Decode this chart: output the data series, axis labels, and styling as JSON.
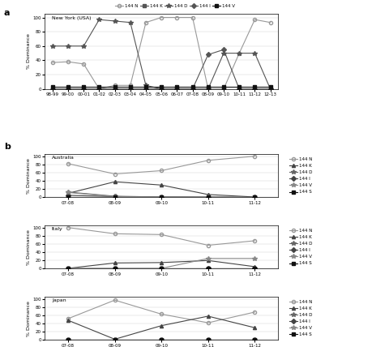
{
  "panel_a": {
    "title": "New York (USA)",
    "xlabel_ticks": [
      "98-99",
      "99-00",
      "00-01",
      "01-02",
      "02-03",
      "03-04",
      "04-05",
      "05-06",
      "06-07",
      "07-08",
      "08-09",
      "09-10",
      "10-11",
      "11-12",
      "12-13"
    ],
    "series_order": [
      "144 N",
      "144 K",
      "144 D",
      "144 I",
      "144 V"
    ],
    "series": {
      "144 N": [
        37,
        38,
        35,
        0,
        5,
        5,
        93,
        100,
        100,
        100,
        0,
        0,
        50,
        97,
        93
      ],
      "144 K": [
        0,
        0,
        0,
        0,
        0,
        0,
        0,
        0,
        0,
        0,
        0,
        0,
        0,
        0,
        0
      ],
      "144 D": [
        60,
        60,
        60,
        97,
        95,
        93,
        5,
        0,
        0,
        0,
        0,
        50,
        50,
        50,
        0
      ],
      "144 I": [
        0,
        0,
        0,
        0,
        0,
        0,
        0,
        0,
        0,
        0,
        48,
        55,
        0,
        0,
        0
      ],
      "144 V": [
        3,
        3,
        3,
        3,
        3,
        3,
        3,
        3,
        3,
        3,
        3,
        3,
        3,
        3,
        3
      ]
    }
  },
  "panel_b_regions": [
    "Australia",
    "Italy",
    "Japan"
  ],
  "panel_b": {
    "Australia": {
      "xlabel_ticks": [
        "07-08",
        "08-09",
        "09-10",
        "10-11",
        "11-12"
      ],
      "series_order": [
        "144 N",
        "144 K",
        "144 D",
        "144 I",
        "144 V",
        "144 S"
      ],
      "series": {
        "144 N": [
          82,
          57,
          65,
          90,
          100
        ],
        "144 K": [
          10,
          38,
          30,
          7,
          1
        ],
        "144 D": [
          13,
          3,
          1,
          0,
          0
        ],
        "144 I": [
          5,
          2,
          1,
          1,
          0
        ],
        "144 V": [
          12,
          2,
          1,
          1,
          0
        ],
        "144 S": [
          1,
          1,
          1,
          1,
          1
        ]
      }
    },
    "Italy": {
      "xlabel_ticks": [
        "07-08",
        "08-09",
        "09-10",
        "10-11",
        "11-12"
      ],
      "series_order": [
        "144 N",
        "144 K",
        "144 D",
        "144 I",
        "144 V",
        "144 S"
      ],
      "series": {
        "144 N": [
          100,
          85,
          83,
          57,
          68
        ],
        "144 K": [
          1,
          14,
          15,
          20,
          5
        ],
        "144 D": [
          1,
          1,
          1,
          1,
          1
        ],
        "144 I": [
          1,
          1,
          1,
          1,
          1
        ],
        "144 V": [
          1,
          1,
          1,
          25,
          25
        ],
        "144 S": [
          1,
          1,
          1,
          1,
          1
        ]
      }
    },
    "Japan": {
      "xlabel_ticks": [
        "07-08",
        "08-09",
        "09-10",
        "10-11",
        "11-12"
      ],
      "series_order": [
        "144 N",
        "144 K",
        "144 D",
        "144 I",
        "144 V",
        "144 S"
      ],
      "series": {
        "144 N": [
          52,
          97,
          63,
          42,
          68
        ],
        "144 K": [
          48,
          2,
          35,
          58,
          30
        ],
        "144 D": [
          1,
          1,
          1,
          1,
          1
        ],
        "144 I": [
          1,
          1,
          1,
          1,
          1
        ],
        "144 V": [
          1,
          1,
          1,
          1,
          1
        ],
        "144 S": [
          1,
          1,
          1,
          1,
          1
        ]
      }
    }
  }
}
